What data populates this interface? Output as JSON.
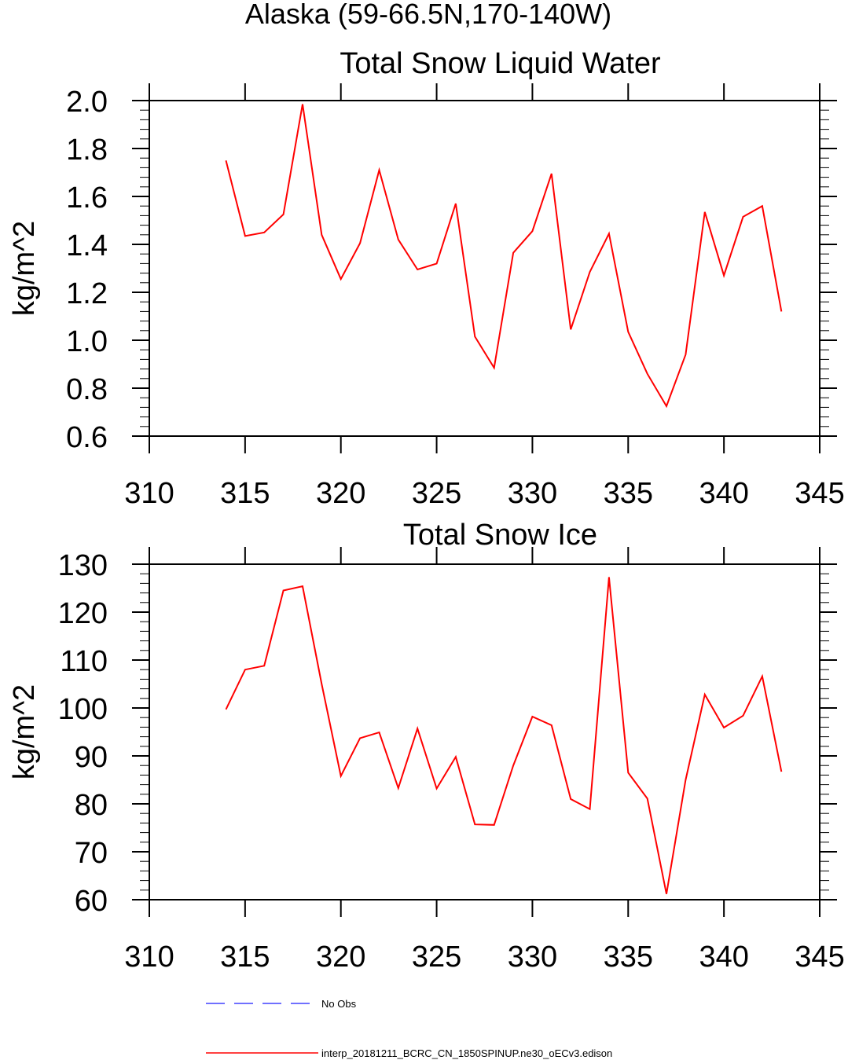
{
  "figure": {
    "title": "Alaska (59-66.5N,170-140W)"
  },
  "legend": {
    "entries": [
      {
        "label": "No Obs",
        "color": "#4040ff",
        "dashed": true
      },
      {
        "label": "interp_20181211_BCRC_CN_1850SPINUP.ne30_oECv3.edison",
        "color": "#ff0000",
        "dashed": false
      }
    ]
  },
  "chart_data": [
    {
      "type": "line",
      "title": "Total Snow Liquid Water",
      "xlabel": "",
      "ylabel": "kg/m^2",
      "xlim": [
        310,
        345
      ],
      "ylim": [
        0.6,
        2.0
      ],
      "xticks": [
        310,
        315,
        320,
        325,
        330,
        335,
        340,
        345
      ],
      "xtick_labels": [
        "310",
        "315",
        "320",
        "325",
        "330",
        "335",
        "340",
        "345"
      ],
      "yticks": [
        0.6,
        0.8,
        1.0,
        1.2,
        1.4,
        1.6,
        1.8,
        2.0
      ],
      "ytick_labels": [
        "0.6",
        "0.8",
        "1.0",
        "1.2",
        "1.4",
        "1.6",
        "1.8",
        "2.0"
      ],
      "series": [
        {
          "color": "#ff0000",
          "x": [
            314,
            315,
            316,
            317,
            318,
            319,
            320,
            321,
            322,
            323,
            324,
            325,
            326,
            327,
            328,
            329,
            330,
            331,
            332,
            333,
            334,
            335,
            336,
            337,
            338,
            339,
            340,
            341,
            342,
            343
          ],
          "y": [
            1.75,
            1.435,
            1.45,
            1.525,
            1.985,
            1.44,
            1.255,
            1.405,
            1.71,
            1.42,
            1.295,
            1.32,
            1.57,
            1.015,
            0.885,
            1.365,
            1.455,
            1.695,
            1.045,
            1.285,
            1.445,
            1.035,
            0.86,
            0.725,
            0.94,
            1.535,
            1.27,
            1.515,
            1.56,
            1.12
          ]
        }
      ]
    },
    {
      "type": "line",
      "title": "Total Snow Ice",
      "xlabel": "",
      "ylabel": "kg/m^2",
      "xlim": [
        310,
        345
      ],
      "ylim": [
        60,
        130
      ],
      "xticks": [
        310,
        315,
        320,
        325,
        330,
        335,
        340,
        345
      ],
      "xtick_labels": [
        "310",
        "315",
        "320",
        "325",
        "330",
        "335",
        "340",
        "345"
      ],
      "yticks": [
        60,
        70,
        80,
        90,
        100,
        110,
        120,
        130
      ],
      "ytick_labels": [
        "60",
        "70",
        "80",
        "90",
        "100",
        "110",
        "120",
        "130"
      ],
      "series": [
        {
          "color": "#ff0000",
          "x": [
            314,
            315,
            316,
            317,
            318,
            319,
            320,
            321,
            322,
            323,
            324,
            325,
            326,
            327,
            328,
            329,
            330,
            331,
            332,
            333,
            334,
            335,
            336,
            337,
            338,
            339,
            340,
            341,
            342,
            343
          ],
          "y": [
            99.7,
            108.0,
            108.8,
            124.5,
            125.4,
            105.0,
            85.8,
            93.7,
            94.9,
            83.3,
            95.7,
            83.2,
            89.8,
            75.7,
            75.6,
            88.0,
            98.2,
            96.4,
            81.0,
            78.9,
            127.3,
            86.5,
            81.1,
            61.2,
            85.0,
            102.8,
            95.9,
            98.4,
            106.6,
            86.7
          ]
        }
      ]
    }
  ]
}
